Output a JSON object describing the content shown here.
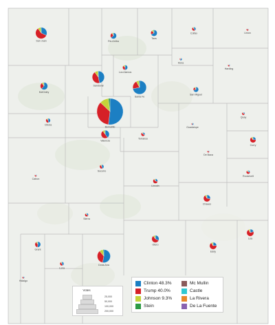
{
  "legend": {
    "entries": [
      {
        "label": "Clinton",
        "pct": "48.3%",
        "color": "#1c7fc3"
      },
      {
        "label": "Trump",
        "pct": "40.0%",
        "color": "#d62027"
      },
      {
        "label": "Johnson",
        "pct": "9.3%",
        "color": "#c4d33a"
      },
      {
        "label": "Stein",
        "pct": "",
        "color": "#2d9b45"
      },
      {
        "label": "Mc Mullin",
        "pct": "",
        "color": "#8a5b5b"
      },
      {
        "label": "Castle",
        "pct": "",
        "color": "#2fc8d2"
      },
      {
        "label": "La Rivera",
        "pct": "",
        "color": "#e8872b"
      },
      {
        "label": "De La Fuente",
        "pct": "",
        "color": "#8a62b0"
      }
    ]
  },
  "size_key": {
    "title": "Votes",
    "values": [
      "25,000",
      "50,000",
      "100,000",
      "200,000"
    ]
  },
  "counties": [
    {
      "name": "San Juan",
      "votes": 52000,
      "shares": [
        0.32,
        0.58,
        0.08,
        0.02
      ]
    },
    {
      "name": "Rio Arriba",
      "votes": 15000,
      "shares": [
        0.65,
        0.27,
        0.06,
        0.02
      ]
    },
    {
      "name": "Taos",
      "votes": 16000,
      "shares": [
        0.68,
        0.2,
        0.08,
        0.04
      ]
    },
    {
      "name": "Colfax",
      "votes": 6000,
      "shares": [
        0.4,
        0.5,
        0.08,
        0.02
      ]
    },
    {
      "name": "Union",
      "votes": 2000,
      "shares": [
        0.2,
        0.72,
        0.06,
        0.02
      ]
    },
    {
      "name": "Los Alamos",
      "votes": 10000,
      "shares": [
        0.51,
        0.36,
        0.11,
        0.02
      ]
    },
    {
      "name": "Sandoval",
      "votes": 60000,
      "shares": [
        0.47,
        0.43,
        0.09,
        0.01
      ]
    },
    {
      "name": "Santa Fe",
      "votes": 75000,
      "shares": [
        0.72,
        0.2,
        0.06,
        0.02
      ]
    },
    {
      "name": "Mora",
      "votes": 2500,
      "shares": [
        0.65,
        0.28,
        0.06,
        0.01
      ]
    },
    {
      "name": "Harding",
      "votes": 600,
      "shares": [
        0.3,
        0.62,
        0.07,
        0.01
      ]
    },
    {
      "name": "McKinley",
      "votes": 22000,
      "shares": [
        0.62,
        0.28,
        0.08,
        0.02
      ]
    },
    {
      "name": "San Miguel",
      "votes": 11000,
      "shares": [
        0.7,
        0.21,
        0.07,
        0.02
      ]
    },
    {
      "name": "Bernalillo",
      "votes": 280000,
      "shares": [
        0.52,
        0.35,
        0.11,
        0.02
      ]
    },
    {
      "name": "Cibola",
      "votes": 8000,
      "shares": [
        0.48,
        0.42,
        0.08,
        0.02
      ]
    },
    {
      "name": "Valencia",
      "votes": 27000,
      "shares": [
        0.4,
        0.5,
        0.08,
        0.02
      ]
    },
    {
      "name": "Torrance",
      "votes": 6000,
      "shares": [
        0.3,
        0.62,
        0.07,
        0.01
      ]
    },
    {
      "name": "Guadalupe",
      "votes": 1800,
      "shares": [
        0.55,
        0.36,
        0.07,
        0.02
      ]
    },
    {
      "name": "Quay",
      "votes": 3500,
      "shares": [
        0.28,
        0.64,
        0.07,
        0.01
      ]
    },
    {
      "name": "Curry",
      "votes": 14000,
      "shares": [
        0.25,
        0.65,
        0.09,
        0.01
      ]
    },
    {
      "name": "De Baca",
      "votes": 900,
      "shares": [
        0.25,
        0.66,
        0.08,
        0.01
      ]
    },
    {
      "name": "Catron",
      "votes": 2000,
      "shares": [
        0.25,
        0.66,
        0.08,
        0.01
      ]
    },
    {
      "name": "Socorro",
      "votes": 7000,
      "shares": [
        0.46,
        0.44,
        0.08,
        0.02
      ]
    },
    {
      "name": "Lincoln",
      "votes": 9000,
      "shares": [
        0.28,
        0.63,
        0.08,
        0.01
      ]
    },
    {
      "name": "Roosevelt",
      "votes": 5500,
      "shares": [
        0.25,
        0.65,
        0.09,
        0.01
      ]
    },
    {
      "name": "Chaves",
      "votes": 19000,
      "shares": [
        0.28,
        0.63,
        0.08,
        0.01
      ]
    },
    {
      "name": "Sierra",
      "votes": 5000,
      "shares": [
        0.32,
        0.58,
        0.08,
        0.02
      ]
    },
    {
      "name": "Otero",
      "votes": 21000,
      "shares": [
        0.32,
        0.58,
        0.09,
        0.01
      ]
    },
    {
      "name": "Eddy",
      "votes": 20000,
      "shares": [
        0.24,
        0.67,
        0.08,
        0.01
      ]
    },
    {
      "name": "Lea",
      "votes": 20000,
      "shares": [
        0.2,
        0.72,
        0.07,
        0.01
      ]
    },
    {
      "name": "Grant",
      "votes": 13000,
      "shares": [
        0.52,
        0.38,
        0.08,
        0.02
      ]
    },
    {
      "name": "Luna",
      "votes": 6000,
      "shares": [
        0.44,
        0.46,
        0.08,
        0.02
      ]
    },
    {
      "name": "Dona Ana",
      "votes": 70000,
      "shares": [
        0.53,
        0.36,
        0.09,
        0.02
      ]
    },
    {
      "name": "Hidalgo",
      "votes": 1800,
      "shares": [
        0.4,
        0.51,
        0.07,
        0.02
      ]
    }
  ]
}
